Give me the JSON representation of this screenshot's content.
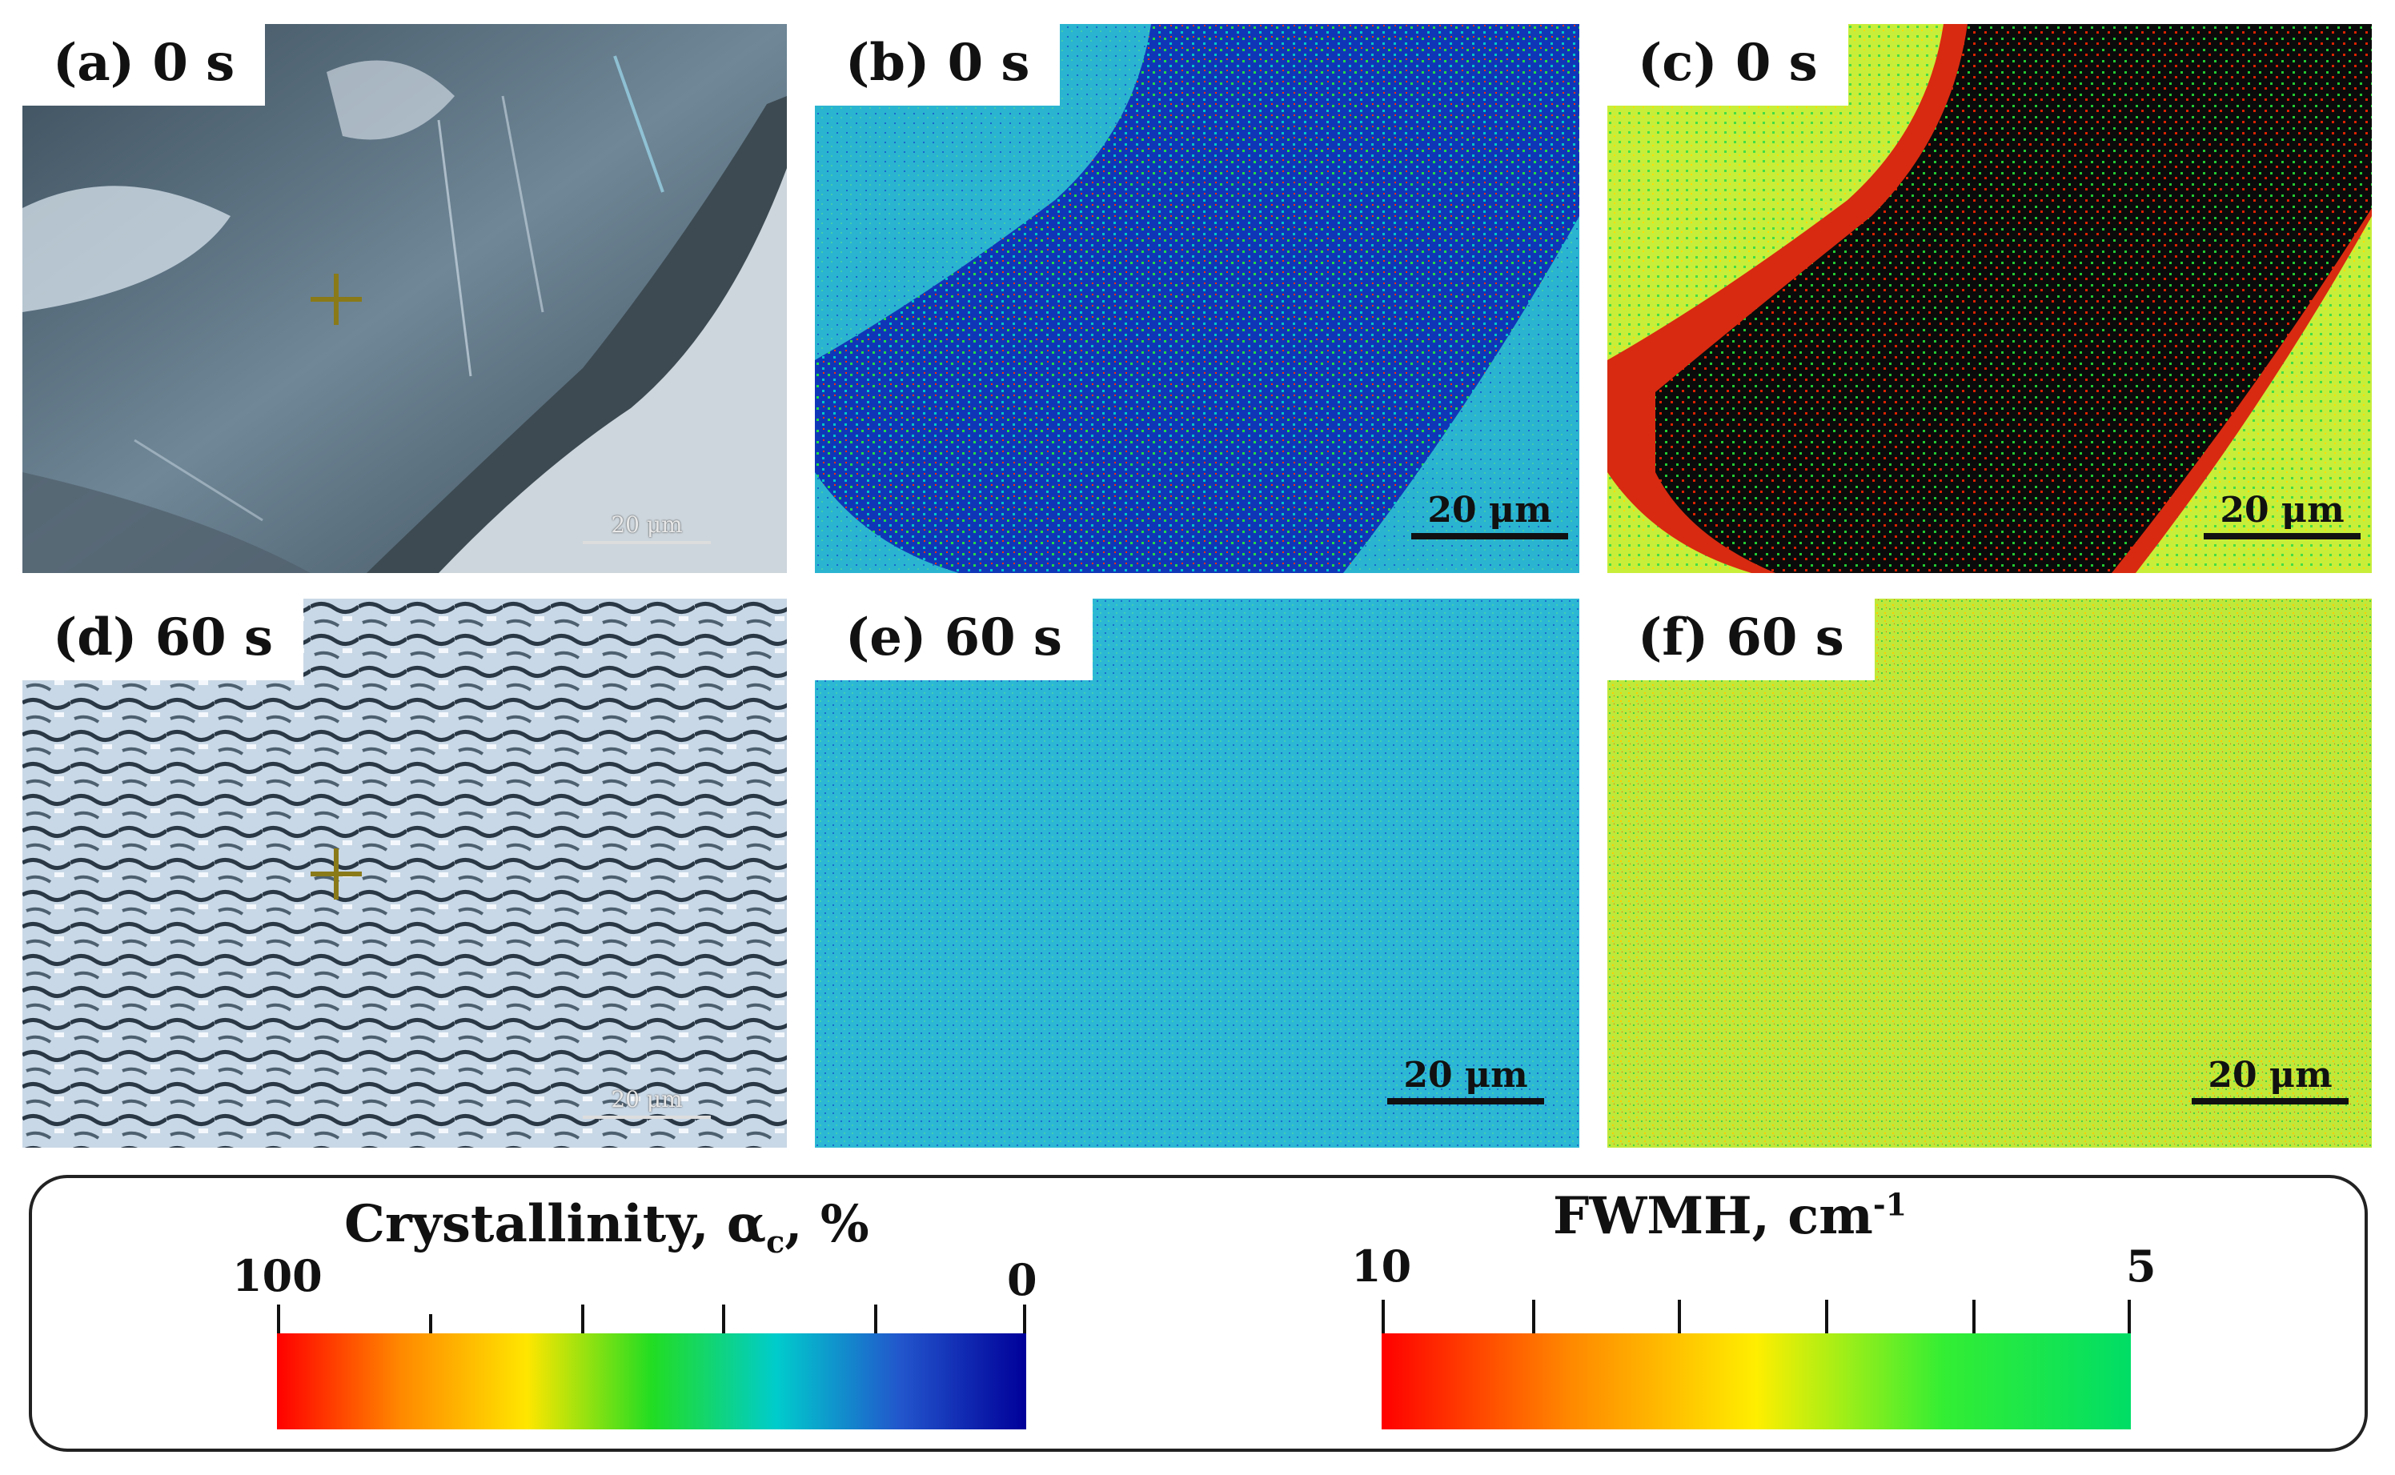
{
  "panels": [
    {
      "id": "a",
      "label": "(a) 0 s",
      "scale": "20 μm",
      "kind": "optical"
    },
    {
      "id": "b",
      "label": "(b) 0 s",
      "scale": "20 μm",
      "kind": "crystallinity-map"
    },
    {
      "id": "c",
      "label": "(c) 0 s",
      "scale": "20 μm",
      "kind": "fwhm-map"
    },
    {
      "id": "d",
      "label": "(d) 60 s",
      "scale": "20 μm",
      "kind": "optical"
    },
    {
      "id": "e",
      "label": "(e) 60 s",
      "scale": "20 μm",
      "kind": "crystallinity-map"
    },
    {
      "id": "f",
      "label": "(f) 60 s",
      "scale": "20 μm",
      "kind": "fwhm-map"
    }
  ],
  "legend": {
    "crystallinity": {
      "title": "Crystallinity, αc, %",
      "title_main": "Crystallinity, α",
      "title_sub": "c",
      "title_end": ", %",
      "min_label": "100",
      "max_label": "0",
      "gradient": [
        "#ff0000",
        "#ff8a00",
        "#ffe600",
        "#22dd22",
        "#00cccc",
        "#2255cc",
        "#000099"
      ]
    },
    "fwhm": {
      "title": "FWMH, cm-1",
      "title_main": "FWMH, cm",
      "title_sup": "-1",
      "min_label": "10",
      "max_label": "5",
      "gradient": [
        "#ff0000",
        "#ff8800",
        "#ffee00",
        "#33ee33",
        "#00dd66"
      ]
    }
  }
}
